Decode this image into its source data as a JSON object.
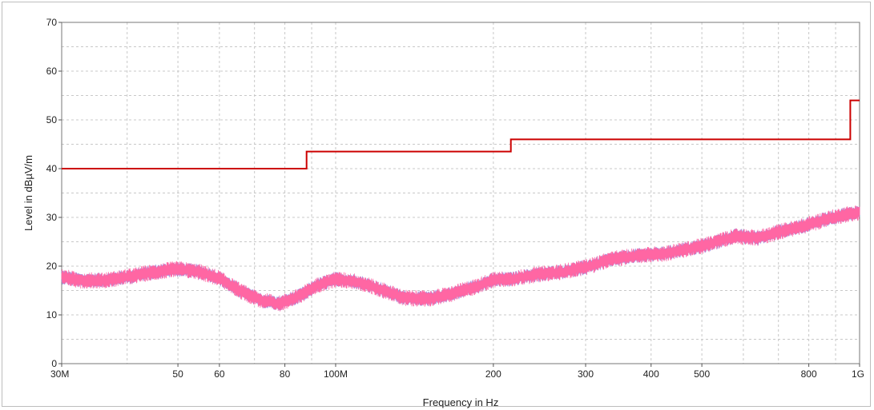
{
  "chart_data": {
    "type": "line",
    "title": "",
    "xlabel": "Frequency in Hz",
    "ylabel": "Level in dBµV/m",
    "x_scale": "log",
    "xlim": [
      30000000,
      1000000000
    ],
    "ylim": [
      0,
      70
    ],
    "grid": true,
    "x_ticks": [
      {
        "value": 30000000,
        "label": "30M"
      },
      {
        "value": 50000000,
        "label": "50"
      },
      {
        "value": 60000000,
        "label": "60"
      },
      {
        "value": 80000000,
        "label": "80"
      },
      {
        "value": 100000000,
        "label": "100M"
      },
      {
        "value": 200000000,
        "label": "200"
      },
      {
        "value": 300000000,
        "label": "300"
      },
      {
        "value": 400000000,
        "label": "400"
      },
      {
        "value": 500000000,
        "label": "500"
      },
      {
        "value": 800000000,
        "label": "800"
      },
      {
        "value": 1000000000,
        "label": "1G"
      }
    ],
    "y_ticks": [
      0,
      10,
      20,
      30,
      40,
      50,
      60,
      70
    ],
    "series": [
      {
        "role": "limit",
        "color": "#cc0000",
        "shape": "step",
        "x": [
          30000000,
          88000000,
          88000000,
          216000000,
          216000000,
          960000000,
          960000000,
          1000000000
        ],
        "y": [
          40,
          40,
          43.5,
          43.5,
          46,
          46,
          54,
          54
        ]
      },
      {
        "role": "measurement",
        "color": "#ff66a3",
        "edge_color": "#8a8ae6",
        "band_width": 2.6,
        "x": [
          30000000,
          33000000,
          37000000,
          41000000,
          45000000,
          50000000,
          55000000,
          60000000,
          66000000,
          72000000,
          78000000,
          85000000,
          92000000,
          100000000,
          110000000,
          122000000,
          135000000,
          150000000,
          165000000,
          185000000,
          200000000,
          215000000,
          240000000,
          270000000,
          300000000,
          340000000,
          380000000,
          420000000,
          470000000,
          520000000,
          580000000,
          640000000,
          700000000,
          780000000,
          860000000,
          940000000,
          1000000000
        ],
        "y": [
          17.8,
          17.0,
          17.2,
          18.0,
          18.8,
          19.4,
          18.8,
          17.5,
          14.8,
          13.0,
          12.3,
          13.8,
          16.0,
          17.3,
          16.8,
          15.2,
          13.5,
          13.3,
          14.2,
          15.8,
          17.2,
          17.3,
          18.2,
          18.8,
          19.8,
          21.5,
          22.2,
          22.5,
          23.5,
          24.6,
          26.2,
          25.8,
          27.0,
          28.2,
          29.6,
          30.6,
          31.0
        ]
      }
    ]
  }
}
